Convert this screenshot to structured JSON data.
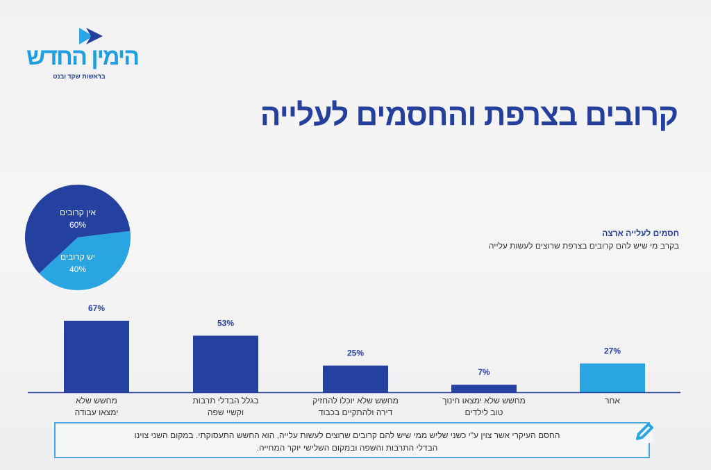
{
  "logo": {
    "name": "הימין החדש",
    "subtitle": "בראשות שקד ובנט"
  },
  "title": "קרובים בצרפת והחסמים לעלייה",
  "chart_data": [
    {
      "type": "pie",
      "slices": [
        {
          "label": "אין קרובים",
          "value": 60,
          "value_label": "60%",
          "color": "#2541a0"
        },
        {
          "label": "יש קרובים",
          "value": 40,
          "value_label": "40%",
          "color": "#29a6e2"
        }
      ]
    },
    {
      "type": "bar",
      "title": "חסמים לעלייה ארצה",
      "subtitle": "בקרב מי שיש להם קרובים בצרפת שרוצים לעשות עלייה",
      "categories": [
        "מחשש שלא ימצאו עבודה",
        "בגלל הבדלי תרבות וקשיי שפה",
        "מחשש שלא יוכלו להחזיק דירה ולהתקיים בכבוד",
        "מחשש שלא ימצאו חינוך טוב לילדים",
        "אחר"
      ],
      "category_lines": [
        [
          "מחשש שלא",
          "ימצאו עבודה"
        ],
        [
          "בגלל הבדלי תרבות",
          "וקשיי שפה"
        ],
        [
          "מחשש שלא יוכלו להחזיק",
          "דירה ולהתקיים בכבוד"
        ],
        [
          "מחשש שלא ימצאו חינוך",
          "טוב לילדים"
        ],
        [
          "אחר",
          ""
        ]
      ],
      "values": [
        67,
        53,
        25,
        7,
        27
      ],
      "value_labels": [
        "67%",
        "53%",
        "25%",
        "7%",
        "27%"
      ],
      "colors": [
        "#2541a0",
        "#2541a0",
        "#2541a0",
        "#2541a0",
        "#29a6e2"
      ],
      "ylim": [
        0,
        100
      ],
      "grid": false
    }
  ],
  "note": {
    "lines": [
      "החסם העיקרי אשר צוין ע\"י כשני שליש ממי שיש להם קרובים שרוצים לעשות עלייה, הוא החשש התעסוקתי. במקום השני צוינו",
      "הבדלי התרבות והשפה ובמקום השלישי יוקר המחייה."
    ],
    "icon": "pencil-icon"
  }
}
